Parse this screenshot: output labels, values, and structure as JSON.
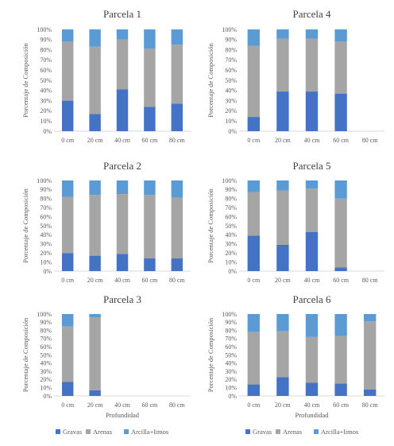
{
  "chart_data": [
    {
      "type": "bar",
      "stacked": true,
      "title": "Parcela 1",
      "ylabel": "Porcentaje de Composición",
      "xlabel": "",
      "categories": [
        "0 cm",
        "20 cm",
        "40 cm",
        "60 cm",
        "80 cm"
      ],
      "ylim": [
        0,
        100
      ],
      "yticks": [
        "0%",
        "10%",
        "20%",
        "30%",
        "40%",
        "50%",
        "60%",
        "70%",
        "80%",
        "90%",
        "100%"
      ],
      "series": [
        {
          "name": "Gravas",
          "color": "#4472c4",
          "values": [
            30,
            17,
            41,
            24,
            27
          ]
        },
        {
          "name": "Arenas",
          "color": "#a5a5a5",
          "values": [
            58,
            66,
            49,
            57,
            58
          ]
        },
        {
          "name": "Arcilla+limos",
          "color": "#5b9bd5",
          "values": [
            12,
            17,
            10,
            19,
            15
          ]
        }
      ]
    },
    {
      "type": "bar",
      "stacked": true,
      "title": "Parcela 4",
      "ylabel": "Porcentaje de Composición",
      "xlabel": "",
      "categories": [
        "0 cm",
        "20 cm",
        "40 cm",
        "60 cm",
        "80 cm"
      ],
      "ylim": [
        0,
        100
      ],
      "yticks": [
        "0%",
        "10%",
        "20%",
        "30%",
        "40%",
        "50%",
        "60%",
        "70%",
        "80%",
        "90%",
        "100%"
      ],
      "series": [
        {
          "name": "Gravas",
          "color": "#4472c4",
          "values": [
            14,
            39,
            39,
            37,
            0
          ]
        },
        {
          "name": "Arenas",
          "color": "#a5a5a5",
          "values": [
            70,
            52,
            52,
            51,
            0
          ]
        },
        {
          "name": "Arcilla+limos",
          "color": "#5b9bd5",
          "values": [
            16,
            9,
            9,
            12,
            0
          ]
        }
      ]
    },
    {
      "type": "bar",
      "stacked": true,
      "title": "Parcela 2",
      "ylabel": "Porcentaje de Composición",
      "xlabel": "",
      "categories": [
        "0 cm",
        "20 cm",
        "40 cm",
        "60 cm",
        "80 cm"
      ],
      "ylim": [
        0,
        100
      ],
      "yticks": [
        "0%",
        "10%",
        "20%",
        "30%",
        "40%",
        "50%",
        "60%",
        "70%",
        "80%",
        "90%",
        "100%"
      ],
      "series": [
        {
          "name": "Gravas",
          "color": "#4472c4",
          "values": [
            20,
            17,
            19,
            14,
            14
          ]
        },
        {
          "name": "Arenas",
          "color": "#a5a5a5",
          "values": [
            62,
            67,
            66,
            70,
            67
          ]
        },
        {
          "name": "Arcilla+limos",
          "color": "#5b9bd5",
          "values": [
            18,
            16,
            15,
            16,
            19
          ]
        }
      ]
    },
    {
      "type": "bar",
      "stacked": true,
      "title": "Parcela 5",
      "ylabel": "Porcentaje de Composición",
      "xlabel": "",
      "categories": [
        "0 cm",
        "20 cm",
        "40 cm",
        "60 cm",
        "80 cm"
      ],
      "ylim": [
        0,
        100
      ],
      "yticks": [
        "0%",
        "10%",
        "20%",
        "30%",
        "40%",
        "50%",
        "60%",
        "70%",
        "80%",
        "90%",
        "100%"
      ],
      "series": [
        {
          "name": "Gravas",
          "color": "#4472c4",
          "values": [
            39,
            29,
            43,
            4,
            0
          ]
        },
        {
          "name": "Arenas",
          "color": "#a5a5a5",
          "values": [
            48,
            60,
            48,
            76,
            0
          ]
        },
        {
          "name": "Arcilla+limos",
          "color": "#5b9bd5",
          "values": [
            13,
            11,
            9,
            20,
            0
          ]
        }
      ]
    },
    {
      "type": "bar",
      "stacked": true,
      "title": "Parcela 3",
      "ylabel": "Porcentaje de Composición",
      "xlabel": "Profundidad",
      "categories": [
        "0 cm",
        "20 cm",
        "40 cm",
        "60 cm",
        "80 cm"
      ],
      "ylim": [
        0,
        100
      ],
      "yticks": [
        "0%",
        "10%",
        "20%",
        "30%",
        "40%",
        "50%",
        "60%",
        "70%",
        "80%",
        "90%",
        "100%"
      ],
      "series": [
        {
          "name": "Gravas",
          "color": "#4472c4",
          "values": [
            17,
            7,
            0,
            0,
            0
          ]
        },
        {
          "name": "Arenas",
          "color": "#a5a5a5",
          "values": [
            68,
            89,
            0,
            0,
            0
          ]
        },
        {
          "name": "Arcilla+limos",
          "color": "#5b9bd5",
          "values": [
            15,
            4,
            0,
            0,
            0
          ]
        }
      ]
    },
    {
      "type": "bar",
      "stacked": true,
      "title": "Parcela 6",
      "ylabel": "Porcentaje de Composición",
      "xlabel": "Profundidad",
      "categories": [
        "0 cm",
        "20 cm",
        "40 cm",
        "60 cm",
        "80 cm"
      ],
      "ylim": [
        0,
        100
      ],
      "yticks": [
        "0%",
        "10%",
        "20%",
        "30%",
        "40%",
        "50%",
        "60%",
        "70%",
        "80%",
        "90%",
        "100%"
      ],
      "series": [
        {
          "name": "Gravas",
          "color": "#4472c4",
          "values": [
            14,
            23,
            16,
            15,
            8
          ]
        },
        {
          "name": "Arenas",
          "color": "#a5a5a5",
          "values": [
            64,
            56,
            56,
            58,
            83
          ]
        },
        {
          "name": "Arcilla+limos",
          "color": "#5b9bd5",
          "values": [
            22,
            21,
            28,
            27,
            9
          ]
        }
      ]
    }
  ],
  "legends": [
    {
      "items": [
        {
          "label": "Gravas",
          "color": "#4472c4"
        },
        {
          "label": "Arenas",
          "color": "#a5a5a5"
        },
        {
          "label": "Arcilla+limos",
          "color": "#5b9bd5"
        }
      ]
    },
    {
      "items": [
        {
          "label": "Gravas",
          "color": "#4472c4"
        },
        {
          "label": "Arenas",
          "color": "#a5a5a5"
        },
        {
          "label": "Arcilla+limos",
          "color": "#5b9bd5"
        }
      ]
    }
  ]
}
